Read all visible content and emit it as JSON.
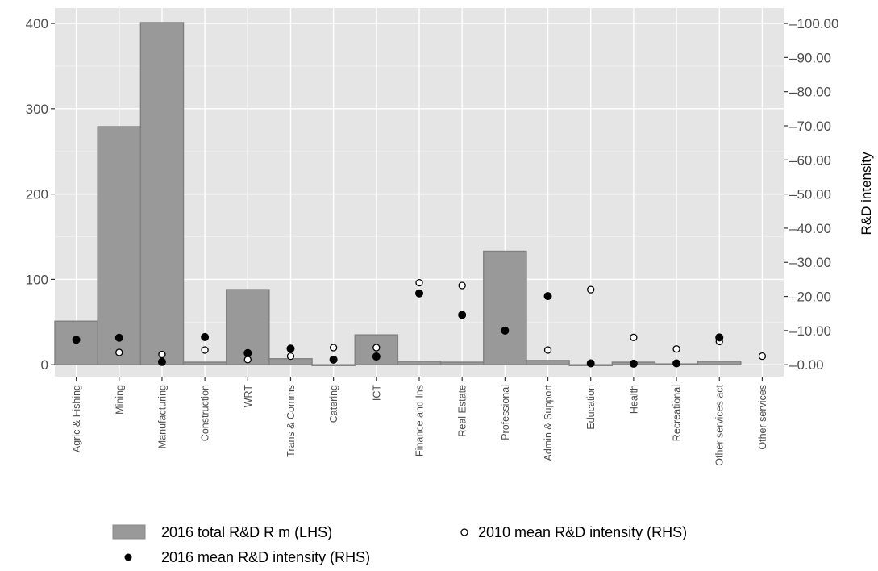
{
  "chart_data": {
    "type": "bar",
    "title": "",
    "xlabel": "",
    "ylabel": "",
    "y2label": "R&D intensity",
    "categories": [
      "Agric & Fishing",
      "Mining",
      "Manufacturing",
      "Construction",
      "WRT",
      "Trans & Comms",
      "Catering",
      "ICT",
      "Finance and Ins",
      "Real Estate",
      "Professional",
      "Admin & Support",
      "Education",
      "Health",
      "Recreational",
      "Other services act",
      "Other services"
    ],
    "ylim": [
      -14,
      418
    ],
    "y_ticks": [
      0,
      100,
      200,
      300,
      400
    ],
    "y_tick_labels": [
      "0",
      "100",
      "200",
      "300",
      "400"
    ],
    "y2lim": [
      -3.5,
      104.5
    ],
    "y2_ticks": [
      0,
      10,
      20,
      30,
      40,
      50,
      60,
      70,
      80,
      90,
      100
    ],
    "y2_tick_labels": [
      "0.00",
      "10.00",
      "20.00",
      "30.00",
      "40.00",
      "50.00",
      "60.00",
      "70.00",
      "80.00",
      "90.00",
      "100.00"
    ],
    "grid": true,
    "legend_position": "bottom",
    "series": [
      {
        "name": "2016 total R&D R m (LHS)",
        "axis": "left",
        "kind": "bar",
        "color": "#999999",
        "values": [
          51,
          279,
          401,
          3,
          88,
          7,
          -1,
          35,
          4,
          3,
          133,
          5,
          -1,
          3,
          1,
          4,
          null
        ]
      },
      {
        "name": "2016 mean R&D intensity (RHS)",
        "axis": "right",
        "kind": "point",
        "color": "#000000",
        "values": [
          7.3,
          7.9,
          0.8,
          8.1,
          3.4,
          4.7,
          1.5,
          2.4,
          20.9,
          14.6,
          10.0,
          20.1,
          0.4,
          0.3,
          0.4,
          8.0,
          null
        ]
      },
      {
        "name": "2010 mean R&D intensity (RHS)",
        "axis": "right",
        "kind": "open-point",
        "color": "#000000",
        "values": [
          null,
          3.6,
          3.0,
          4.3,
          1.5,
          2.5,
          5.0,
          5.0,
          24.0,
          23.2,
          null,
          4.3,
          22.0,
          8.0,
          4.6,
          6.8,
          2.5
        ]
      }
    ]
  }
}
